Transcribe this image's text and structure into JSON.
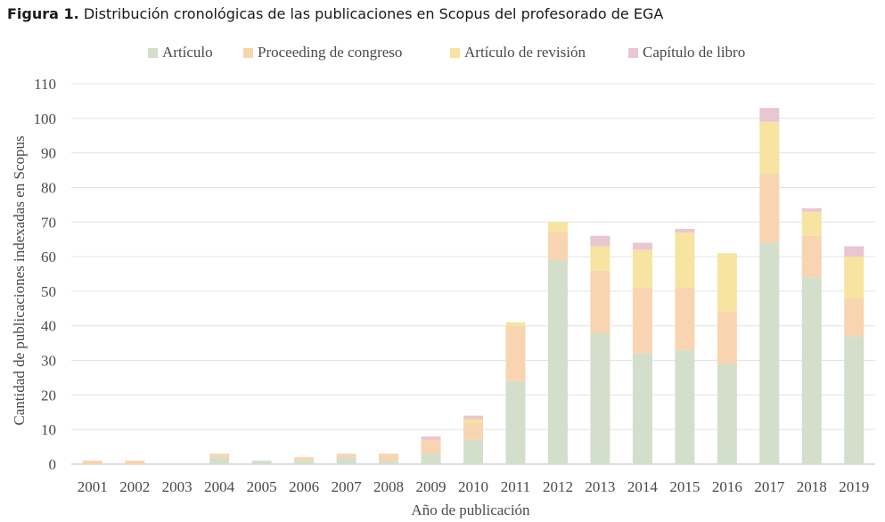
{
  "caption": {
    "prefix": "Figura 1.",
    "text": "Distribución cronológicas de las publicaciones en Scopus del profesorado de EGA"
  },
  "chart_data": {
    "type": "bar",
    "stacked": true,
    "categories": [
      "2001",
      "2002",
      "2003",
      "2004",
      "2005",
      "2006",
      "2007",
      "2008",
      "2009",
      "2010",
      "2011",
      "2012",
      "2013",
      "2014",
      "2015",
      "2016",
      "2017",
      "2018",
      "2019"
    ],
    "series": [
      {
        "name": "Artículo",
        "color": "#d3dfcb",
        "values": [
          0,
          0,
          0,
          2,
          1,
          1,
          2,
          1,
          3,
          7,
          24,
          59,
          38,
          32,
          33,
          29,
          64,
          54,
          37
        ]
      },
      {
        "name": "Proceeding de congreso",
        "color": "#f9d4b1",
        "values": [
          1,
          1,
          0,
          1,
          0,
          1,
          1,
          2,
          4,
          5,
          16,
          8,
          18,
          19,
          18,
          15,
          20,
          12,
          11
        ]
      },
      {
        "name": "Artículo de revisión",
        "color": "#f6e4a0",
        "values": [
          0,
          0,
          0,
          0,
          0,
          0,
          0,
          0,
          0,
          1,
          1,
          3,
          7,
          11,
          16,
          17,
          15,
          7,
          12
        ]
      },
      {
        "name": "Capítulo de libro",
        "color": "#e8c6d2",
        "values": [
          0,
          0,
          0,
          0,
          0,
          0,
          0,
          0,
          1,
          1,
          0,
          0,
          3,
          2,
          1,
          0,
          4,
          1,
          3
        ]
      }
    ],
    "xlabel": "Año de publicación",
    "ylabel": "Cantidad de publicaciones indexadas en Scopus",
    "ylim": [
      0,
      110
    ],
    "yticks": [
      0,
      10,
      20,
      30,
      40,
      50,
      60,
      70,
      80,
      90,
      100,
      110
    ],
    "grid": true,
    "legend_position": "top"
  }
}
